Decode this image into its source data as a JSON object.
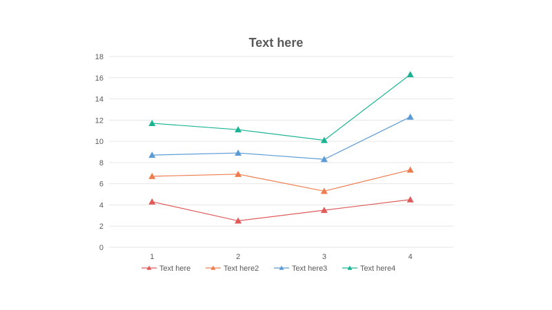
{
  "chart_data": {
    "type": "line",
    "title": "Text here",
    "xlabel": "",
    "ylabel": "",
    "categories": [
      "1",
      "2",
      "3",
      "4"
    ],
    "ylim": [
      0,
      18
    ],
    "yticks": [
      "0",
      "2",
      "4",
      "6",
      "8",
      "10",
      "12",
      "14",
      "16",
      "18"
    ],
    "grid": true,
    "marker": "triangle",
    "legend_position": "bottom",
    "series": [
      {
        "name": "Text here",
        "color": "#e05a5a",
        "values": [
          4.3,
          2.5,
          3.5,
          4.5
        ]
      },
      {
        "name": "Text here2",
        "color": "#ed7d4f",
        "values": [
          6.7,
          6.9,
          5.3,
          7.3
        ]
      },
      {
        "name": "Text here3",
        "color": "#5b9bd5",
        "values": [
          8.7,
          8.9,
          8.3,
          12.3
        ]
      },
      {
        "name": "Text here4",
        "color": "#19b394",
        "values": [
          11.7,
          11.1,
          10.1,
          16.3
        ]
      }
    ]
  }
}
